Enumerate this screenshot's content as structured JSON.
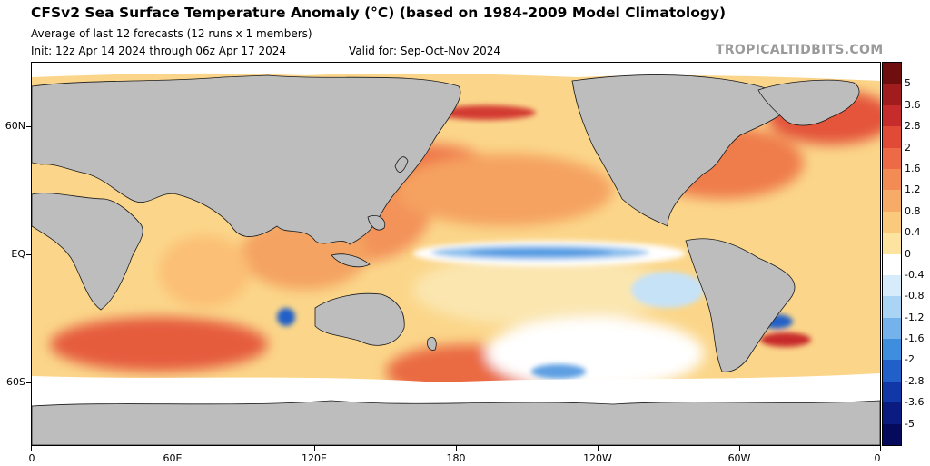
{
  "header": {
    "title": "CFSv2 Sea Surface Temperature Anomaly (°C) (based on 1984-2009 Model Climatology)",
    "subtitle": "Average of last 12 forecasts (12 runs x 1 members)",
    "init": "Init: 12z Apr 14 2024 through 06z Apr 17 2024",
    "valid": "Valid for: Sep-Oct-Nov 2024",
    "source": "TROPICALTIDBITS.COM"
  },
  "map": {
    "lon_range": [
      0,
      360
    ],
    "lat_range": [
      -90,
      90
    ],
    "y_labels": [
      {
        "label": "60N",
        "lat": 60
      },
      {
        "label": "EQ",
        "lat": 0
      },
      {
        "label": "60S",
        "lat": -60
      }
    ],
    "x_labels": [
      {
        "label": "0",
        "lon": 0
      },
      {
        "label": "60E",
        "lon": 60
      },
      {
        "label": "120E",
        "lon": 120
      },
      {
        "label": "180",
        "lon": 180
      },
      {
        "label": "120W",
        "lon": 240
      },
      {
        "label": "60W",
        "lon": 300
      },
      {
        "label": "0",
        "lon": 360
      }
    ],
    "colors": {
      "land": "#bdbdbd",
      "ocean_base": "#fbd68a",
      "ice": "#ffffff",
      "border": "#000000"
    }
  },
  "colorbar": {
    "labels": [
      "5",
      "3.6",
      "2.8",
      "2",
      "1.6",
      "1.2",
      "0.8",
      "0.4",
      "0",
      "-0.4",
      "-0.8",
      "-1.2",
      "-1.6",
      "-2",
      "-2.8",
      "-3.6",
      "-5"
    ],
    "colors": [
      "#6e0e0e",
      "#a11c1c",
      "#c72c2c",
      "#e04a36",
      "#ec6a45",
      "#f38b55",
      "#f7ab69",
      "#fbc97c",
      "#fde3a0",
      "#ffffff",
      "#d6ecfb",
      "#a9d4f3",
      "#73b2ea",
      "#3f8ede",
      "#2160c8",
      "#1238a8",
      "#0a1c80",
      "#050a5c"
    ]
  }
}
